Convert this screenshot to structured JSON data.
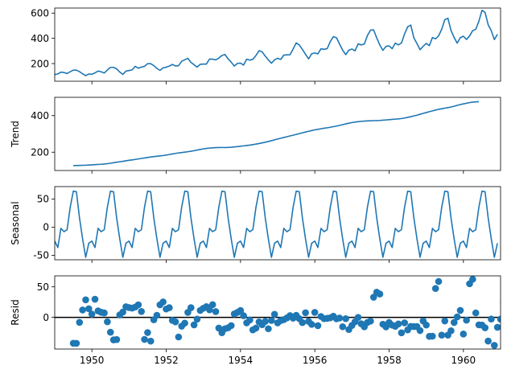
{
  "colors": {
    "series": "#1f77b4",
    "zero_line": "#000000",
    "frame": "#000000",
    "background": "#ffffff"
  },
  "chart_data": [
    {
      "type": "line",
      "ylabel": "",
      "xlim": [
        1949,
        1961
      ],
      "ylim": [
        60,
        640
      ],
      "yticks": [
        200,
        400,
        600
      ],
      "x_start": 1949,
      "step": 0.08333,
      "values": [
        112,
        118,
        132,
        129,
        121,
        135,
        148,
        148,
        136,
        119,
        104,
        118,
        115,
        126,
        141,
        135,
        125,
        149,
        170,
        170,
        158,
        133,
        114,
        140,
        145,
        150,
        178,
        163,
        172,
        178,
        199,
        199,
        184,
        162,
        146,
        166,
        171,
        180,
        193,
        181,
        183,
        218,
        230,
        242,
        209,
        191,
        172,
        194,
        196,
        196,
        236,
        235,
        229,
        243,
        264,
        272,
        237,
        211,
        180,
        201,
        204,
        188,
        235,
        227,
        234,
        264,
        302,
        293,
        259,
        229,
        203,
        229,
        242,
        233,
        267,
        269,
        270,
        315,
        364,
        347,
        312,
        274,
        237,
        278,
        284,
        277,
        317,
        313,
        318,
        374,
        413,
        405,
        355,
        306,
        271,
        306,
        315,
        301,
        356,
        348,
        355,
        422,
        465,
        467,
        404,
        347,
        305,
        336,
        340,
        318,
        362,
        348,
        363,
        435,
        491,
        505,
        404,
        359,
        310,
        337,
        360,
        342,
        406,
        396,
        420,
        472,
        548,
        559,
        463,
        407,
        362,
        405,
        417,
        391,
        419,
        461,
        472,
        535,
        622,
        606,
        508,
        461,
        390,
        432
      ]
    },
    {
      "type": "line",
      "ylabel": "Trend",
      "xlim": [
        1949,
        1961
      ],
      "ylim": [
        100,
        500
      ],
      "yticks": [
        200,
        400
      ],
      "x_start": 1949.5,
      "step": 0.08333,
      "values": [
        126.8,
        127.3,
        127.9,
        128.6,
        129.0,
        129.8,
        131.0,
        132.1,
        133.1,
        134.0,
        135.5,
        137.4,
        139.5,
        142.4,
        145.2,
        147.8,
        150.3,
        153.1,
        155.6,
        157.9,
        160.5,
        163.2,
        165.9,
        168.3,
        171.1,
        173.9,
        176.1,
        177.9,
        179.8,
        181.9,
        184.4,
        187.3,
        190.3,
        193.5,
        196.2,
        198.1,
        200.2,
        202.7,
        205.2,
        208.2,
        211.8,
        215.0,
        218.1,
        220.7,
        222.6,
        224.0,
        224.8,
        225.7,
        225.8,
        225.6,
        226.1,
        227.3,
        228.9,
        230.7,
        232.6,
        234.6,
        236.7,
        238.8,
        241.4,
        244.3,
        247.5,
        250.9,
        254.7,
        258.4,
        262.8,
        267.5,
        271.9,
        276.2,
        280.5,
        284.6,
        288.9,
        292.9,
        297.2,
        301.5,
        305.9,
        310.1,
        314.3,
        318.4,
        322.0,
        325.0,
        328.0,
        330.9,
        333.6,
        336.3,
        339.5,
        342.9,
        346.6,
        350.7,
        354.6,
        358.6,
        362.0,
        364.6,
        366.8,
        368.6,
        370.1,
        371.3,
        371.9,
        372.5,
        372.6,
        373.6,
        375.0,
        376.4,
        377.7,
        379.3,
        380.8,
        382.0,
        384.1,
        386.9,
        390.3,
        394.3,
        398.4,
        402.3,
        407.4,
        412.0,
        416.7,
        421.3,
        425.8,
        430.4,
        434.2,
        437.5,
        440.7,
        443.5,
        447.2,
        451.2,
        455.9,
        460.4,
        464.1,
        467.5,
        471.0,
        474.0,
        475.2,
        476.1
      ]
    },
    {
      "type": "line",
      "ylabel": "Seasonal",
      "xlim": [
        1949,
        1961
      ],
      "ylim": [
        -58,
        72
      ],
      "yticks": [
        -50,
        0,
        50
      ],
      "x_start": 1949,
      "step": 0.08333,
      "pattern": [
        -24.75,
        -36.19,
        -2.24,
        -8.04,
        -4.51,
        35.4,
        63.83,
        62.82,
        16.52,
        -20.64,
        -53.59,
        -28.62
      ]
    },
    {
      "type": "scatter",
      "ylabel": "Resid",
      "xlim": [
        1949,
        1961
      ],
      "ylim": [
        -52,
        68
      ],
      "yticks": [
        0,
        50
      ],
      "zero_line": true,
      "x_start": 1949.5,
      "step": 0.08333,
      "values": [
        -42.5,
        -42.6,
        -8.2,
        12.0,
        28.7,
        14.1,
        5.3,
        29.7,
        10.6,
        8.2,
        7.2,
        -7.3,
        -24.4,
        -36.9,
        -36.4,
        4.0,
        8.6,
        17.3,
        16.0,
        15.1,
        16.9,
        20.5,
        9.6,
        -36.2,
        -25.0,
        -39.0,
        -4.0,
        3.4,
        20.5,
        25.2,
        13.6,
        15.8,
        -4.9,
        -7.4,
        -32.2,
        -14.5,
        -9.5,
        8.1,
        15.8,
        -12.4,
        -3.0,
        11.3,
        14.9,
        17.5,
        12.4,
        20.8,
        9.4,
        -17.6,
        -25.2,
        -18.7,
        -17.1,
        -13.6,
        5.6,
        8.1,
        11.2,
        2.6,
        -9.1,
        -4.3,
        -20.6,
        -17.6,
        -7.5,
        -12.0,
        -6.8,
        -18.7,
        -5.2,
        4.9,
        -9.1,
        -5.3,
        -3.8,
        -1.0,
        2.9,
        -1.4,
        3.4,
        -2.1,
        -8.6,
        7.5,
        -6.6,
        -11.6,
        8.1,
        -13.7,
        1.4,
        -2.2,
        -1.6,
        -0.8,
        1.8,
        -2.4,
        -1.2,
        -15.4,
        -2.2,
        -20.0,
        -13.3,
        -7.3,
        -0.1,
        -10.6,
        -15.5,
        -8.4,
        -6.2,
        33.0,
        41.2,
        38.2,
        -11.3,
        -15.7,
        -8.4,
        -12.8,
        -14.7,
        -10.9,
        -25.4,
        -9.1,
        -20.6,
        -14.9,
        -15.2,
        -15.2,
        -21.7,
        -5.9,
        -12.6,
        -31.2,
        -30.9,
        47.3,
        58.8,
        -29.2,
        -5.9,
        -29.2,
        -22.0,
        -8.4,
        0.7,
        11.4,
        -27.4,
        -4.7,
        55.0,
        62.4,
        7.2,
        -12.3,
        -12.7,
        -17.1,
        -38.9,
        -2.8,
        -46.0,
        -16.3,
        -3.0,
        24.2
      ]
    }
  ],
  "x_axis": {
    "ticks": [
      "1950",
      "1952",
      "1954",
      "1956",
      "1958",
      "1960"
    ]
  }
}
